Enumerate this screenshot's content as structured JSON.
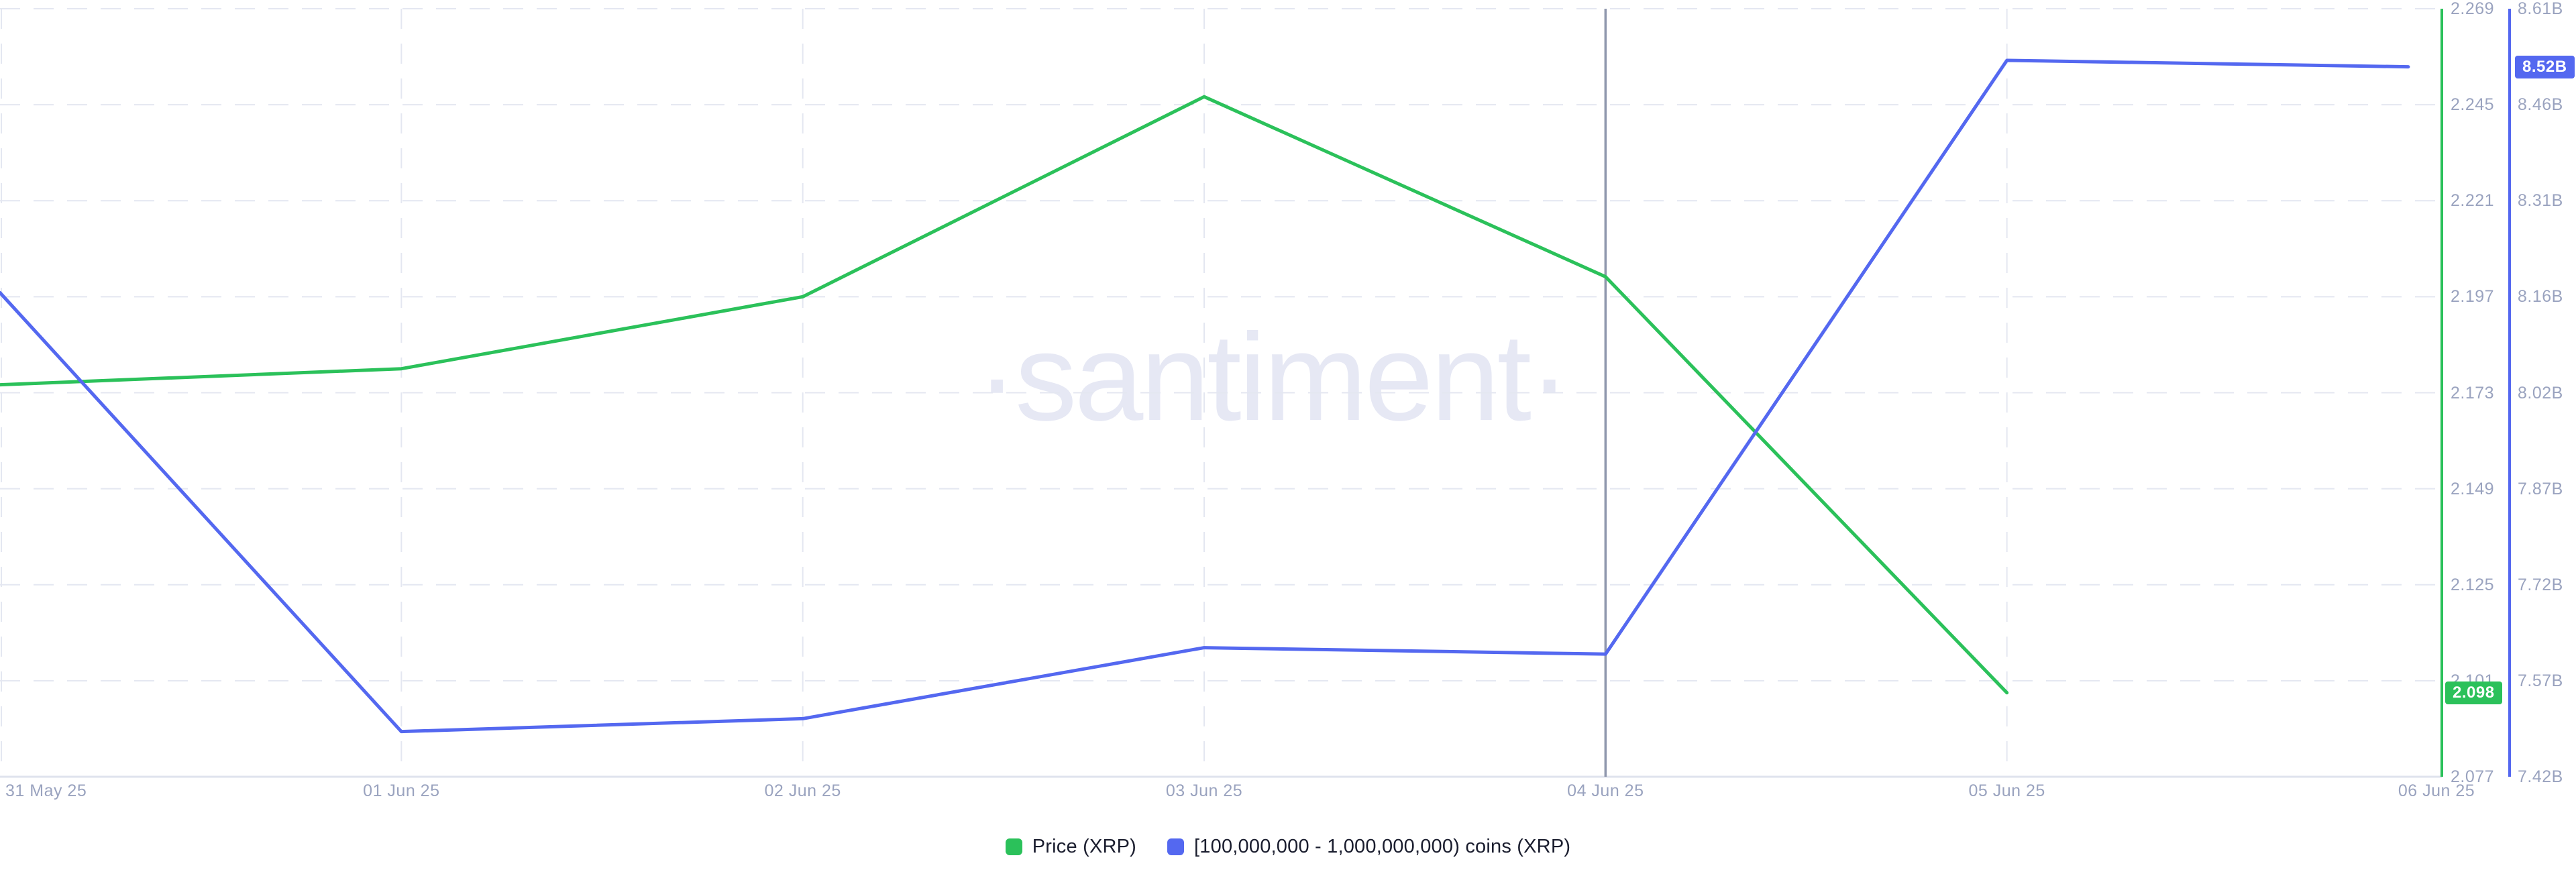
{
  "watermark": {
    "text": "·santiment·"
  },
  "legend": {
    "items": [
      {
        "label": "Price (XRP)",
        "color": "#2bc15a"
      },
      {
        "label": "[100,000,000 - 1,000,000,000) coins (XRP)",
        "color": "#5468f0"
      }
    ]
  },
  "colors": {
    "price_series": "#2bc15a",
    "supply_series": "#5468f0",
    "gridline": "#e4e7f1",
    "bottom_axis": "#dfe3ed",
    "crosshair": "#8f97ad",
    "tick_text": "#9aa3bf",
    "legend_text": "#1a1d2e",
    "watermark": "#e6e8f4"
  },
  "chart_data": {
    "type": "line",
    "title": "",
    "x_labels": [
      "31 May 25",
      "01 Jun 25",
      "02 Jun 25",
      "03 Jun 25",
      "04 Jun 25",
      "05 Jun 25",
      "06 Jun 25"
    ],
    "series": [
      {
        "name": "Price (XRP)",
        "axis": "price",
        "color": "#2bc15a",
        "x": [
          "31 May 25",
          "01 Jun 25",
          "02 Jun 25",
          "03 Jun 25",
          "04 Jun 25",
          "05 Jun 25"
        ],
        "values": [
          2.175,
          2.179,
          2.197,
          2.247,
          2.202,
          2.098
        ]
      },
      {
        "name": "[100,000,000 - 1,000,000,000) coins (XRP)",
        "axis": "supply",
        "color": "#5468f0",
        "unit": "B",
        "x": [
          "31 May 25",
          "01 Jun 25",
          "02 Jun 25",
          "03 Jun 25",
          "04 Jun 25",
          "05 Jun 25",
          "06 Jun 25"
        ],
        "values": [
          8.17,
          7.49,
          7.51,
          7.62,
          7.61,
          8.53,
          8.52
        ]
      }
    ],
    "axes": {
      "price": {
        "side": "right-inner",
        "color": "#2bc15a",
        "range": [
          2.077,
          2.269
        ],
        "ticks": [
          "2.269",
          "2.245",
          "2.221",
          "2.197",
          "2.173",
          "2.149",
          "2.125",
          "2.101",
          "2.077"
        ]
      },
      "supply": {
        "side": "right-outer",
        "color": "#5468f0",
        "range": [
          7.42,
          8.61
        ],
        "unit": "B",
        "ticks": [
          "8.61B",
          "8.46B",
          "8.31B",
          "8.16B",
          "8.02B",
          "7.87B",
          "7.72B",
          "7.57B",
          "7.42B"
        ]
      }
    },
    "badges": {
      "price": {
        "label": "2.098",
        "value": 2.098
      },
      "supply": {
        "label": "8.52B",
        "value": 8.52
      }
    },
    "crosshair": {
      "x_label": "04 Jun 25"
    },
    "grid": true,
    "legend_position": "bottom-center"
  }
}
